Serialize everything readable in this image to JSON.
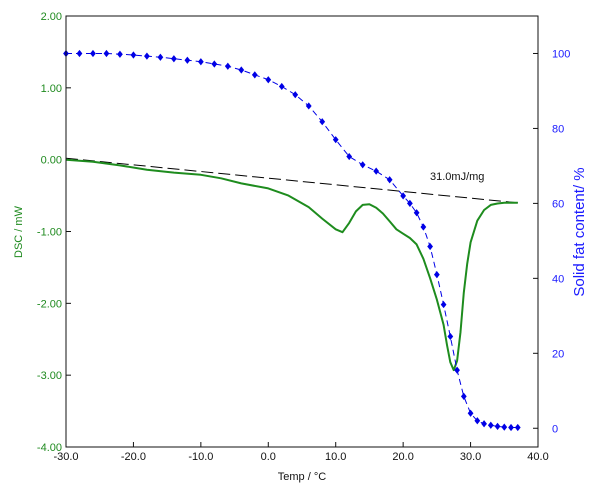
{
  "chart_data": {
    "type": "line",
    "xlabel": "Temp / °C",
    "ylabel_left": "DSC / mW",
    "ylabel_right": "Solid fat content/ %",
    "xlim": [
      -30,
      40
    ],
    "ylim_left": [
      -4,
      2
    ],
    "ylim_right": [
      -5,
      110
    ],
    "x_ticks": [
      "-30.0",
      "-20.0",
      "-10.0",
      "0.0",
      "10.0",
      "20.0",
      "30.0",
      "40.0"
    ],
    "y_left_ticks": [
      "2.00",
      "1.00",
      "0.00",
      "-1.00",
      "-2.00",
      "-3.00",
      "-4.00"
    ],
    "y_right_ticks": [
      "100",
      "80",
      "60",
      "40",
      "20",
      "0"
    ],
    "annotation": "31.0mJ/mg",
    "colors": {
      "dsc": "#1e8c1e",
      "sfc": "#0000e6",
      "baseline": "#000000",
      "left_axis_text": "#1f8a1f",
      "right_axis_text": "#1a1aff"
    },
    "series": [
      {
        "name": "DSC",
        "axis": "left",
        "points": [
          [
            -30,
            0.0
          ],
          [
            -26,
            -0.03
          ],
          [
            -22,
            -0.08
          ],
          [
            -18,
            -0.14
          ],
          [
            -14,
            -0.18
          ],
          [
            -10,
            -0.21
          ],
          [
            -7,
            -0.26
          ],
          [
            -4,
            -0.33
          ],
          [
            0,
            -0.4
          ],
          [
            3,
            -0.5
          ],
          [
            6,
            -0.66
          ],
          [
            8,
            -0.82
          ],
          [
            10,
            -0.97
          ],
          [
            11,
            -1.01
          ],
          [
            12,
            -0.88
          ],
          [
            13,
            -0.72
          ],
          [
            14,
            -0.63
          ],
          [
            15,
            -0.62
          ],
          [
            16,
            -0.67
          ],
          [
            17,
            -0.75
          ],
          [
            18,
            -0.86
          ],
          [
            19,
            -0.97
          ],
          [
            20,
            -1.03
          ],
          [
            21,
            -1.09
          ],
          [
            22,
            -1.18
          ],
          [
            23,
            -1.38
          ],
          [
            24,
            -1.65
          ],
          [
            25,
            -1.95
          ],
          [
            26,
            -2.3
          ],
          [
            26.5,
            -2.58
          ],
          [
            27,
            -2.82
          ],
          [
            27.5,
            -2.93
          ],
          [
            28,
            -2.8
          ],
          [
            28.5,
            -2.4
          ],
          [
            29,
            -1.85
          ],
          [
            29.5,
            -1.45
          ],
          [
            30,
            -1.15
          ],
          [
            31,
            -0.85
          ],
          [
            32,
            -0.7
          ],
          [
            33,
            -0.63
          ],
          [
            34,
            -0.61
          ],
          [
            35,
            -0.6
          ],
          [
            36,
            -0.6
          ],
          [
            37,
            -0.6
          ]
        ]
      },
      {
        "name": "Solid fat content",
        "axis": "right",
        "points": [
          [
            -30,
            100
          ],
          [
            -28,
            100
          ],
          [
            -26,
            100
          ],
          [
            -24,
            100
          ],
          [
            -22,
            99.8
          ],
          [
            -20,
            99.6
          ],
          [
            -18,
            99.3
          ],
          [
            -16,
            99.0
          ],
          [
            -14,
            98.6
          ],
          [
            -12,
            98.2
          ],
          [
            -10,
            97.8
          ],
          [
            -8,
            97.2
          ],
          [
            -6,
            96.6
          ],
          [
            -4,
            95.6
          ],
          [
            -2,
            94.3
          ],
          [
            0,
            93.0
          ],
          [
            2,
            91.2
          ],
          [
            4,
            89.0
          ],
          [
            6,
            86.0
          ],
          [
            8,
            81.8
          ],
          [
            10,
            77.0
          ],
          [
            12,
            72.5
          ],
          [
            14,
            70.3
          ],
          [
            16,
            68.6
          ],
          [
            18,
            66.3
          ],
          [
            20,
            62.0
          ],
          [
            21,
            60.0
          ],
          [
            22,
            57.5
          ],
          [
            23,
            53.7
          ],
          [
            24,
            48.5
          ],
          [
            25,
            41.0
          ],
          [
            26,
            33.0
          ],
          [
            27,
            24.5
          ],
          [
            28,
            15.5
          ],
          [
            29,
            8.5
          ],
          [
            30,
            4.0
          ],
          [
            31,
            2.0
          ],
          [
            32,
            1.2
          ],
          [
            33,
            0.8
          ],
          [
            34,
            0.5
          ],
          [
            35,
            0.3
          ],
          [
            36,
            0.2
          ],
          [
            37,
            0.2
          ]
        ]
      },
      {
        "name": "baseline",
        "axis": "left",
        "points": [
          [
            -30,
            0.02
          ],
          [
            37,
            -0.6
          ]
        ]
      }
    ]
  }
}
